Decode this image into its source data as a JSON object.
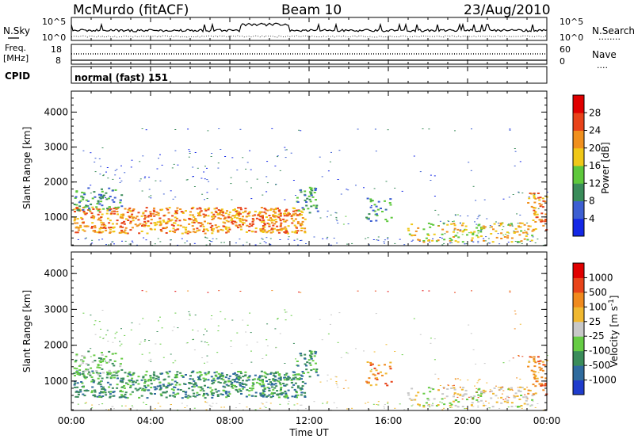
{
  "header": {
    "station": "McMurdo (fitACF)",
    "beam": "Beam 10",
    "date": "23/Aug/2010"
  },
  "noise_panel": {
    "left_label": "N.Sky",
    "right_label": "N.Search",
    "right_marker": "........",
    "left_ticks": [
      "10^5",
      "10^0"
    ],
    "right_ticks": [
      "10^5",
      "10^0"
    ]
  },
  "freq_panel": {
    "left_label_top": "Freq.",
    "left_label_bottom": "[MHz]",
    "right_label": "Nave",
    "right_marker": "....",
    "left_ticks": [
      "18",
      "8"
    ],
    "right_ticks": [
      "60",
      "0"
    ]
  },
  "cpid": {
    "label": "CPID",
    "value": "normal (fast) 151"
  },
  "chart_data": [
    {
      "type": "heatmap",
      "name": "power",
      "ylabel": "Slant Range [km]",
      "xlabel": "",
      "ylim": [
        180,
        4600
      ],
      "xlim": [
        0,
        24
      ],
      "yticks": [
        "1000",
        "2000",
        "3000",
        "4000"
      ],
      "colorbar": {
        "label": "Power [dB]",
        "ticks": [
          "4",
          "8",
          "12",
          "16",
          "20",
          "24",
          "28"
        ],
        "colors": [
          "#1428e6",
          "#3d5fd2",
          "#3a8c5a",
          "#5ec83c",
          "#f0c818",
          "#f0901e",
          "#e8431a",
          "#e00000"
        ]
      }
    },
    {
      "type": "heatmap",
      "name": "velocity",
      "ylabel": "Slant Range [km]",
      "xlabel": "Time UT",
      "ylim": [
        180,
        4600
      ],
      "xlim": [
        0,
        24
      ],
      "yticks": [
        "1000",
        "2000",
        "3000",
        "4000"
      ],
      "xticks": [
        "00:00",
        "04:00",
        "08:00",
        "12:00",
        "16:00",
        "20:00",
        "00:00"
      ],
      "colorbar": {
        "label": "Velocity [m s",
        "label_sup": "-1",
        "label_end": "]",
        "ticks": [
          "1000",
          "500",
          "100",
          "25",
          "-25",
          "-100",
          "-500",
          "-1000"
        ],
        "colors": [
          "#1f3ccc",
          "#2f6b9e",
          "#3a8c5a",
          "#66cc44",
          "#c8c8c8",
          "#f0b830",
          "#f08a1e",
          "#e8441a",
          "#e00000"
        ]
      }
    }
  ]
}
